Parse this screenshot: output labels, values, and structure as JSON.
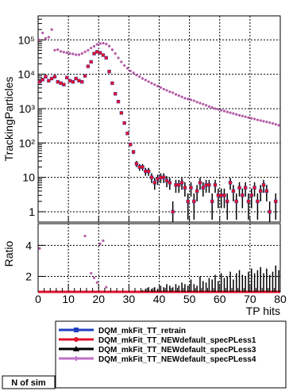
{
  "chart_data": [
    {
      "type": "scatter",
      "panel": "main",
      "ylabel": "TrackingParticles",
      "yscale": "log",
      "ylim": [
        0.5,
        500000
      ],
      "xlim": [
        0,
        80
      ],
      "y_tick_labels": [
        "1",
        "10",
        "10²",
        "10³",
        "10⁴",
        "10⁵"
      ],
      "y_tick_values": [
        1,
        10,
        100,
        1000,
        10000,
        100000
      ],
      "grid": true,
      "series_colors": [
        "#1f3fbf",
        "#e0102a",
        "#000000",
        "#8a1f8f"
      ],
      "series": [
        {
          "name": "pink",
          "x": [
            0.5,
            1.5,
            2.5,
            3.5,
            4.5,
            5.5,
            6.5,
            7.5,
            8.5,
            9.5,
            10.5,
            11.5,
            12.5,
            13.5,
            14.5,
            15.5,
            16.5,
            17.5,
            18.5,
            19.5,
            20.5,
            21.5,
            22.5,
            23.5,
            24.5,
            25.5,
            26.5,
            27.5,
            28.5,
            29.5,
            30.5,
            31.5,
            32.5,
            33.5,
            34.5,
            35.5,
            36.5,
            37.5,
            38.5,
            39.5,
            40.5,
            41.5,
            42.5,
            43.5,
            44.5,
            45.5,
            46.5,
            47.5,
            48.5,
            49.5,
            50.5,
            51.5,
            52.5,
            53.5,
            54.5,
            55.5,
            56.5,
            57.5,
            58.5,
            59.5,
            60.5,
            61.5,
            62.5,
            63.5,
            64.5,
            65.5,
            66.5,
            67.5,
            68.5,
            69.5,
            70.5,
            71.5,
            72.5,
            73.5,
            74.5,
            75.5,
            76.5,
            77.5,
            78.5,
            79.5
          ],
          "y": [
            100000,
            160000,
            110000,
            120000,
            200000,
            50000,
            52000,
            46000,
            44000,
            42000,
            40000,
            39000,
            37000,
            37000,
            40000,
            45000,
            50000,
            58000,
            65000,
            74000,
            78000,
            80000,
            76000,
            66000,
            52000,
            40000,
            30000,
            23000,
            18000,
            15000,
            12500,
            11000,
            9500,
            8500,
            7500,
            6800,
            6100,
            5500,
            5000,
            4500,
            4100,
            3700,
            3400,
            3100,
            2900,
            2600,
            2400,
            2200,
            2000,
            1900,
            1800,
            1700,
            1550,
            1450,
            1350,
            1250,
            1150,
            1080,
            1000,
            950,
            900,
            850,
            800,
            760,
            720,
            680,
            640,
            610,
            580,
            550,
            520,
            500,
            470,
            450,
            430,
            410,
            390,
            370,
            350,
            330
          ]
        },
        {
          "name": "red",
          "x": [
            0.5,
            1.5,
            2.5,
            3.5,
            4.5,
            5.5,
            6.5,
            7.5,
            8.5,
            9.5,
            10.5,
            11.5,
            12.5,
            13.5,
            14.5,
            15.5,
            16.5,
            17.5,
            18.5,
            19.5,
            20.5,
            21.5,
            22.5,
            23.5,
            24.5,
            25.5,
            26.5,
            27.5,
            28.5,
            29.5,
            30.5,
            31.5,
            32.5,
            33.5,
            34.5,
            35.5,
            36.5,
            37.5,
            38.5,
            39.5,
            40.5,
            41.5,
            42.5,
            43.5,
            44.5,
            45.5,
            46.5,
            47.5,
            48.5,
            49.5,
            50.5,
            51.5,
            52.5,
            53.5,
            54.5,
            55.5,
            56.5,
            57.5,
            58.5,
            59.5,
            60.5,
            61.5,
            62.5,
            63.5,
            64.5,
            65.5,
            66.5,
            67.5,
            68.5,
            69.5,
            70.5,
            71.5,
            72.5,
            73.5,
            74.5,
            75.5,
            76.5,
            77.5,
            78.5,
            79.5
          ],
          "y": [
            6000,
            7000,
            8500,
            6500,
            7500,
            8500,
            6000,
            5500,
            5000,
            8000,
            6500,
            6000,
            7500,
            6500,
            6000,
            9000,
            17000,
            23000,
            40000,
            45000,
            42000,
            36000,
            30000,
            12000,
            5500,
            2700,
            1600,
            750,
            380,
            190,
            90,
            55,
            25,
            20,
            20,
            15,
            15,
            10,
            7,
            9,
            10,
            10,
            8,
            7,
            1,
            6,
            6,
            7,
            5,
            2,
            5,
            2,
            4,
            7,
            5,
            6,
            6,
            2,
            6,
            3,
            3,
            3,
            2,
            7,
            4,
            2,
            5,
            3,
            5,
            2,
            3,
            5,
            2,
            4,
            6,
            4,
            1,
            0,
            2,
            0
          ]
        }
      ]
    },
    {
      "type": "scatter",
      "panel": "ratio",
      "ylabel": "Ratio",
      "xlabel": "TP hits",
      "xlim": [
        0,
        80
      ],
      "ylim": [
        1,
        5.4
      ],
      "x_tick_labels": [
        "0",
        "10",
        "20",
        "30",
        "40",
        "50",
        "60",
        "70",
        "80"
      ],
      "x_tick_values": [
        0,
        10,
        20,
        30,
        40,
        50,
        60,
        70,
        80
      ],
      "y_tick_labels": [
        "2",
        "4"
      ],
      "y_tick_values": [
        2,
        4
      ],
      "grid": true,
      "series": [
        {
          "name": "ratio",
          "x": [
            0.5,
            15.5,
            17.5,
            18.5,
            19.5,
            20.5,
            21.5,
            22.5
          ],
          "y": [
            3.8,
            4.6,
            2.2,
            1.9,
            1.6,
            4.1,
            4.3,
            1.3
          ]
        }
      ],
      "step_heights": [
        1,
        1,
        1,
        1,
        1,
        1,
        1,
        1,
        1,
        1,
        1,
        1,
        1,
        1,
        1,
        1,
        1,
        1,
        1,
        1,
        1,
        1,
        1,
        1,
        1,
        1,
        1,
        1,
        1,
        1,
        1,
        1,
        1,
        1,
        1.1,
        1.2,
        1.3,
        1.2,
        1.3,
        1.2,
        1.4,
        1.3,
        1.5,
        1.4,
        1.3,
        1.5,
        1.4,
        1.6,
        1.5,
        1.4,
        1.8,
        1.5,
        1.4,
        2.0,
        1.7,
        1.6,
        1.9,
        1.8,
        2.1,
        1.7,
        2.2,
        1.9,
        2.0,
        2.3,
        1.8,
        2.2,
        2.4,
        2.1,
        2.0,
        2.3,
        2.5,
        2.2,
        2.4,
        2.6,
        2.2,
        2.5,
        2.1,
        2.3,
        2.7,
        2.4
      ]
    }
  ],
  "legend": {
    "entries": [
      {
        "label": "DQM_mkFit_TT_retrain",
        "color": "#1f3fbf",
        "marker": "square"
      },
      {
        "label": "DQM_mkFit_TT_NEWdefault_specPLess1",
        "color": "#e0102a",
        "marker": "circle"
      },
      {
        "label": "DQM_mkFit_TT_NEWdefault_specPLess3",
        "color": "#000000",
        "marker": "triangle"
      },
      {
        "label": "DQM_mkFit_TT_NEWdefault_specPLess4",
        "color": "#c071c8",
        "marker": "cross"
      }
    ]
  },
  "stat_box": {
    "label": "N of sim"
  }
}
